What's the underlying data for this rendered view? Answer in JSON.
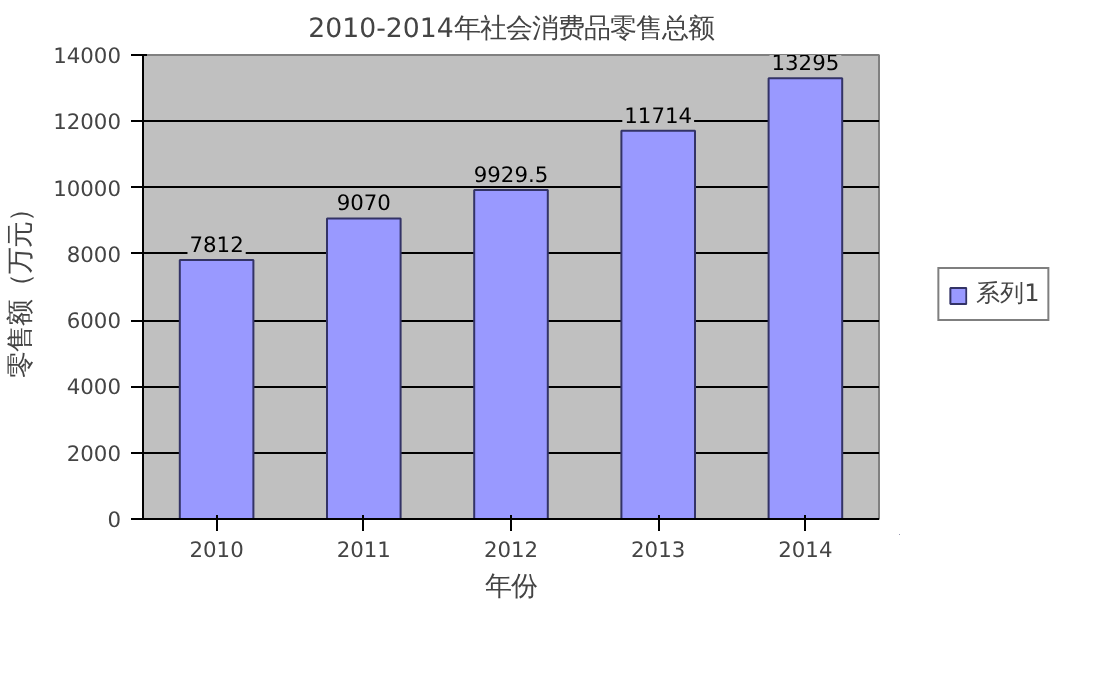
{
  "chart_data": {
    "type": "bar",
    "title": "2010-2014年社会消费品零售总额",
    "xlabel": "年份",
    "ylabel": "零售额（万元）",
    "categories": [
      "2010",
      "2011",
      "2012",
      "2013",
      "2014"
    ],
    "series": [
      {
        "name": "系列1",
        "color": "#9999ff",
        "values": [
          7812,
          9070,
          9929.5,
          11714,
          13295
        ]
      }
    ],
    "ylim": [
      0,
      14000
    ],
    "yticks": [
      0,
      2000,
      4000,
      6000,
      8000,
      10000,
      12000,
      14000
    ],
    "grid": "y",
    "legend": "right",
    "data_labels": true
  }
}
